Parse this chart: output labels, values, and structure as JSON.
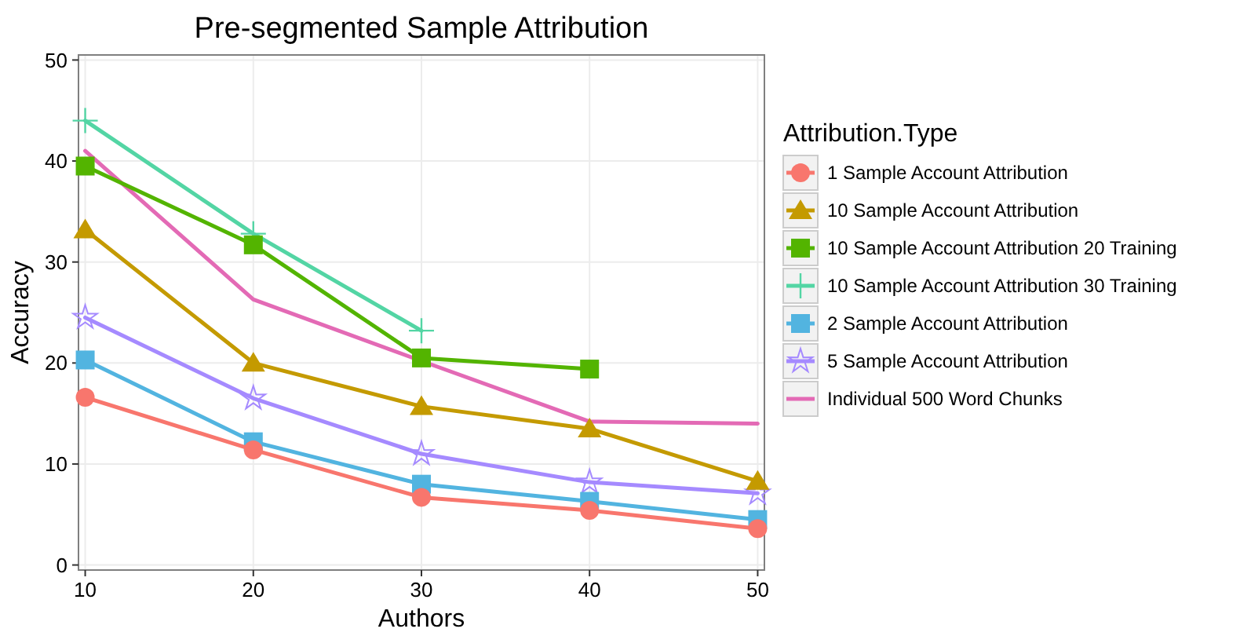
{
  "chart_data": {
    "type": "line",
    "title": "Pre-segmented Sample Attribution",
    "xlabel": "Authors",
    "ylabel": "Accuracy",
    "legend_title": "Attribution.Type",
    "x": [
      10,
      20,
      30,
      40,
      50
    ],
    "xlim": [
      9.6,
      50.4
    ],
    "xticks": [
      10,
      20,
      30,
      40,
      50
    ],
    "ylim": [
      -0.5,
      50.5
    ],
    "yticks": [
      0,
      10,
      20,
      30,
      40,
      50
    ],
    "grid": true,
    "legend": "right",
    "series": [
      {
        "name": "1 Sample Account Attribution",
        "color": "#f8766d",
        "marker": "circle",
        "values": [
          16.6,
          11.4,
          6.7,
          5.4,
          3.6
        ]
      },
      {
        "name": "10 Sample Account Attribution",
        "color": "#c49a00",
        "marker": "triangle",
        "values": [
          33.2,
          20.0,
          15.7,
          13.5,
          8.3
        ]
      },
      {
        "name": "10 Sample Account Attribution 20 Training",
        "color": "#53b400",
        "marker": "square",
        "values": [
          39.5,
          31.7,
          20.5,
          19.4,
          null
        ]
      },
      {
        "name": "10 Sample Account Attribution 30 Training",
        "color": "#53d5a4",
        "marker": "cross",
        "values": [
          44.0,
          32.8,
          23.2,
          null,
          null
        ]
      },
      {
        "name": "2 Sample Account Attribution",
        "color": "#52b4e0",
        "marker": "square",
        "values": [
          20.3,
          12.2,
          8.0,
          6.3,
          4.5
        ]
      },
      {
        "name": "5 Sample Account Attribution",
        "color": "#a58aff",
        "marker": "star",
        "values": [
          24.5,
          16.5,
          11.0,
          8.2,
          7.1
        ]
      },
      {
        "name": "Individual 500 Word Chunks",
        "color": "#e36ab5",
        "marker": "none",
        "values": [
          41.0,
          26.3,
          20.2,
          14.2,
          14.0
        ]
      }
    ]
  }
}
